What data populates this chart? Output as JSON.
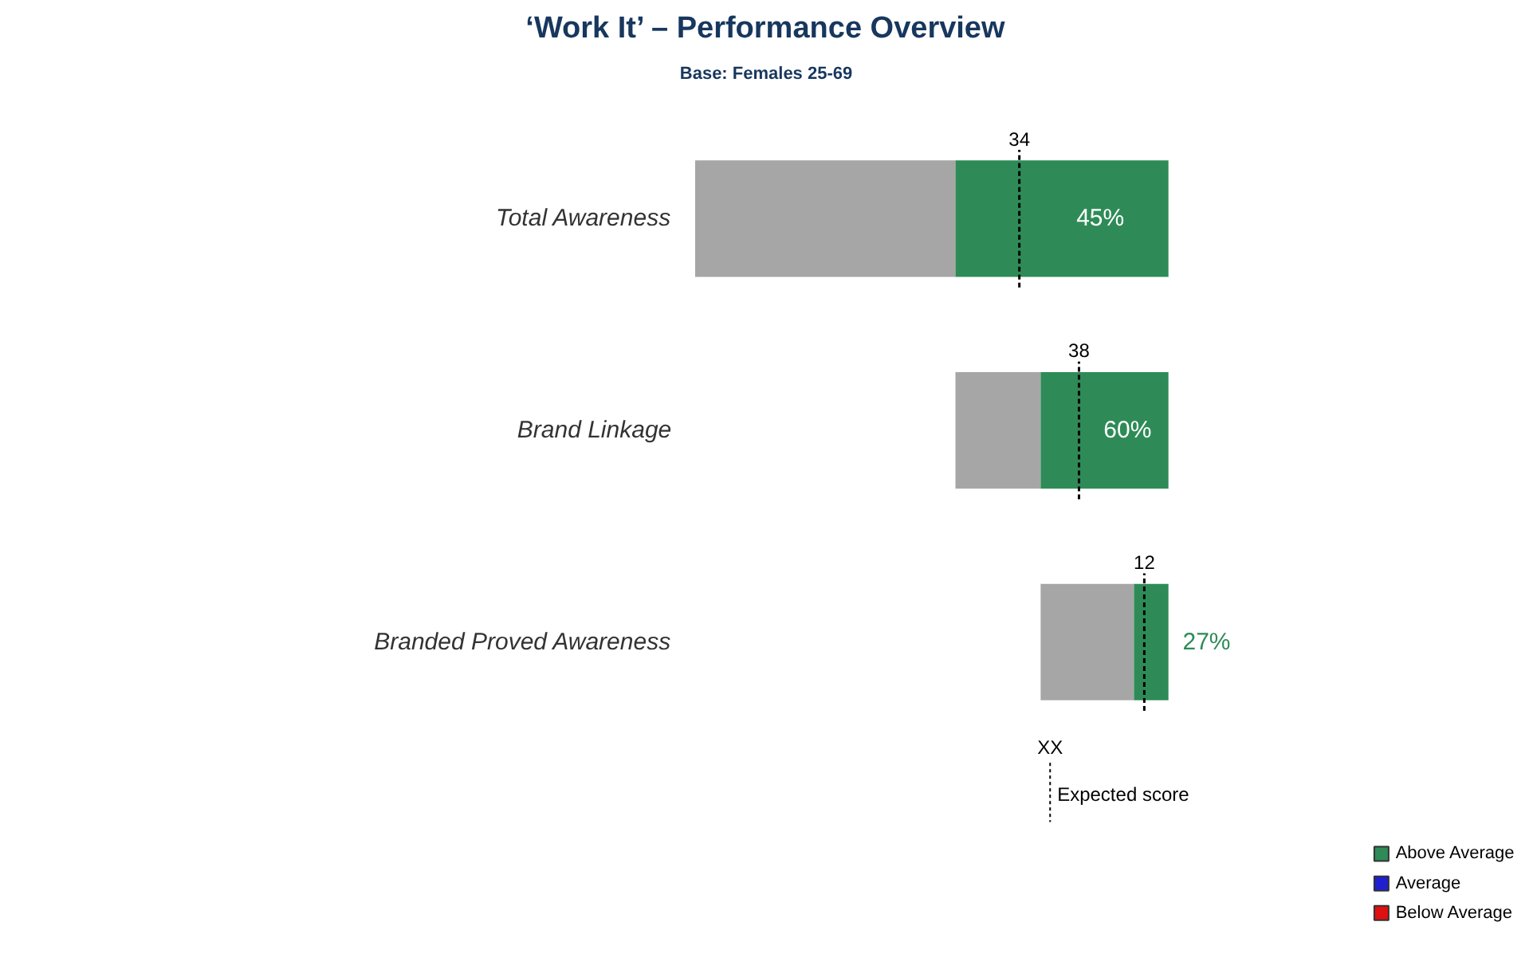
{
  "chart_data": {
    "type": "other",
    "title": "‘Work It’ – Performance Overview",
    "subtitle": "Base: Females 25-69",
    "categories": [
      "Total Awareness",
      "Brand Linkage",
      "Branded Proved Awareness"
    ],
    "series": [
      {
        "color": "#a6a6a6",
        "values": [
          null,
          null,
          null
        ]
      },
      {
        "name": "Above Average",
        "color": "#2e8b57",
        "values": [
          45,
          60,
          27
        ],
        "value_labels": [
          "45%",
          "60%",
          "27%"
        ]
      },
      {
        "name": "Average",
        "color": "#1f1fd0",
        "values": [
          null,
          null,
          null
        ]
      },
      {
        "name": "Below Average",
        "color": "#e01010",
        "values": [
          null,
          null,
          null
        ]
      }
    ],
    "annotations": [
      "34",
      "38",
      "12",
      "XX",
      "Expected score"
    ],
    "legend": "bottom right"
  }
}
